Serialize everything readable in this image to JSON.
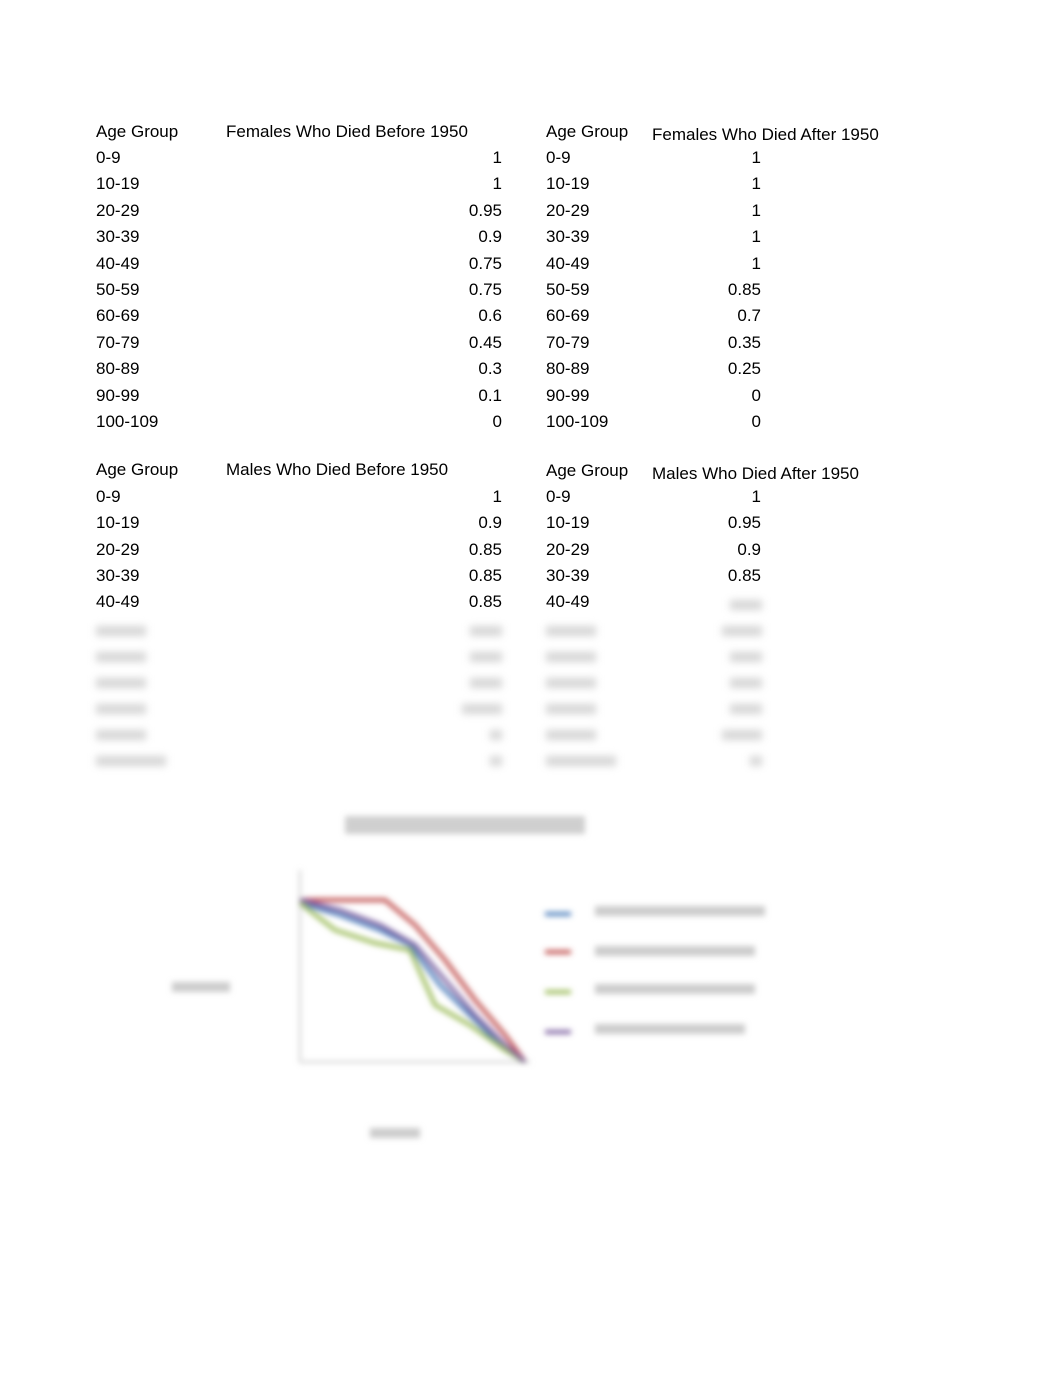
{
  "tables": [
    {
      "header": [
        "Age Group",
        "Females Who Died Before 1950"
      ],
      "rows": [
        [
          "0-9",
          1
        ],
        [
          "10-19",
          1
        ],
        [
          "20-29",
          0.95
        ],
        [
          "30-39",
          0.9
        ],
        [
          "40-49",
          0.75
        ],
        [
          "50-59",
          0.75
        ],
        [
          "60-69",
          0.6
        ],
        [
          "70-79",
          0.45
        ],
        [
          "80-89",
          0.3
        ],
        [
          "90-99",
          0.1
        ],
        [
          "100-109",
          0
        ]
      ]
    },
    {
      "header": [
        "Age Group",
        "Females Who Died After 1950"
      ],
      "rows": [
        [
          "0-9",
          1
        ],
        [
          "10-19",
          1
        ],
        [
          "20-29",
          1
        ],
        [
          "30-39",
          1
        ],
        [
          "40-49",
          1
        ],
        [
          "50-59",
          0.85
        ],
        [
          "60-69",
          0.7
        ],
        [
          "70-79",
          0.35
        ],
        [
          "80-89",
          0.25
        ],
        [
          "90-99",
          0
        ],
        [
          "100-109",
          0
        ]
      ]
    },
    {
      "header": [
        "Age Group",
        "Males Who Died Before 1950"
      ],
      "rows": [
        [
          "0-9",
          1
        ],
        [
          "10-19",
          0.9
        ],
        [
          "20-29",
          0.85
        ],
        [
          "30-39",
          0.85
        ],
        [
          "40-49",
          0.85
        ]
      ]
    },
    {
      "header": [
        "Age Group",
        "Males Who Died After 1950"
      ],
      "rows": [
        [
          "0-9",
          1
        ],
        [
          "10-19",
          0.95
        ],
        [
          "20-29",
          0.9
        ],
        [
          "30-39",
          0.85
        ],
        [
          "40-49",
          null
        ]
      ]
    }
  ]
}
